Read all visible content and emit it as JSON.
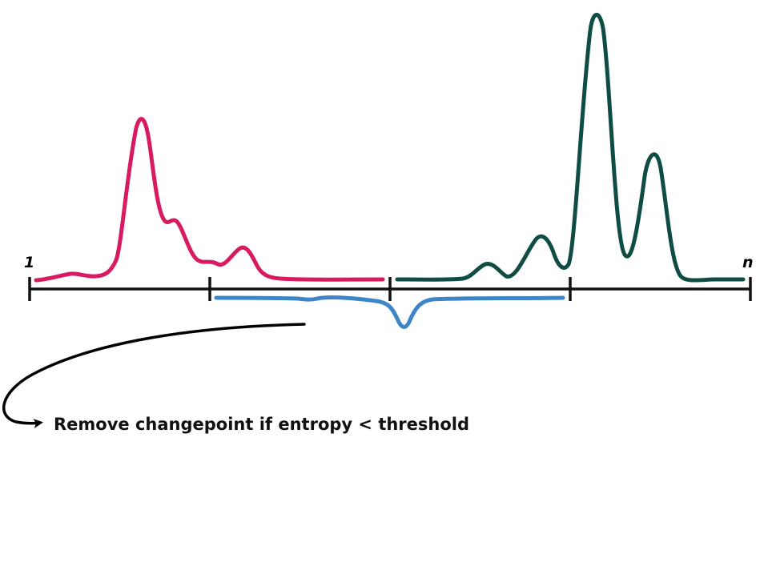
{
  "sequence_start_label": "1",
  "sequence_end_label": "n",
  "caption": "Remove changepoint if entropy < threshold",
  "colors": {
    "segment_1": "#d81b60",
    "merged_segment": "#3d85c6",
    "segment_3": "#0f4d44",
    "axis": "#111111",
    "arrow": "#000000"
  },
  "icons": {
    "arrow": "curved-arrow-icon"
  }
}
